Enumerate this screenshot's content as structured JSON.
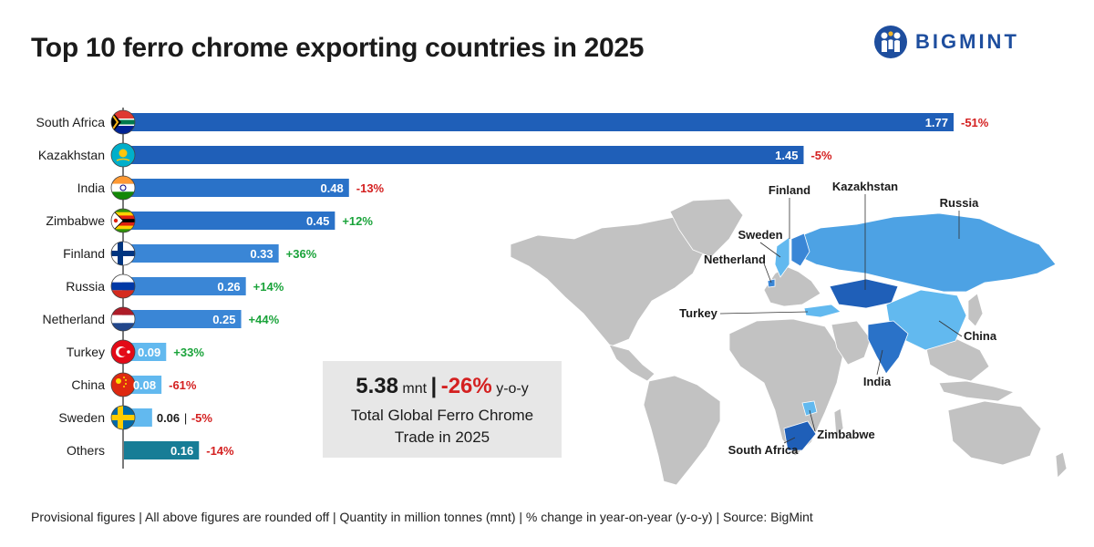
{
  "title": "Top 10 ferro chrome exporting countries in 2025",
  "brand": {
    "name": "BIGMINT"
  },
  "colors": {
    "dark_blue": "#1f5fb8",
    "mid_blue": "#3a86d6",
    "light_blue": "#62b9ef",
    "teal": "#177d96",
    "negative": "#d42020",
    "positive": "#1aa33a",
    "map_land": "#c2c2c2",
    "callout_bg": "#e7e7e7"
  },
  "chart_data": {
    "type": "bar",
    "orientation": "horizontal",
    "unit": "mnt",
    "categories": [
      "South Africa",
      "Kazakhstan",
      "India",
      "Zimbabwe",
      "Finland",
      "Russia",
      "Netherland",
      "Turkey",
      "China",
      "Sweden",
      "Others"
    ],
    "values": [
      1.77,
      1.45,
      0.48,
      0.45,
      0.33,
      0.26,
      0.25,
      0.09,
      0.08,
      0.06,
      0.16
    ],
    "value_labels": [
      "1.77",
      "1.45",
      "0.48",
      "0.45",
      "0.33",
      "0.26",
      "0.25",
      "0.09",
      "0.08",
      "0.06",
      "0.16"
    ],
    "changes": [
      "-51%",
      "-5%",
      "-13%",
      "+12%",
      "+36%",
      "+14%",
      "+44%",
      "+33%",
      "-61%",
      "-5%",
      "-14%"
    ],
    "flag_icons": [
      "south-africa-flag-icon",
      "kazakhstan-flag-icon",
      "india-flag-icon",
      "zimbabwe-flag-icon",
      "finland-flag-icon",
      "russia-flag-icon",
      "netherlands-flag-icon",
      "turkey-flag-icon",
      "china-flag-icon",
      "sweden-flag-icon",
      ""
    ],
    "bar_colors": [
      "#1f5fb8",
      "#1f5fb8",
      "#2a72c8",
      "#2a72c8",
      "#3a86d6",
      "#3a86d6",
      "#3a86d6",
      "#62b9ef",
      "#62b9ef",
      "#62b9ef",
      "#177d96"
    ],
    "xlim": [
      0,
      1.77
    ],
    "grid": false,
    "legend": "none"
  },
  "map": {
    "labels": [
      "Finland",
      "Kazakhstan",
      "Russia",
      "Sweden",
      "Netherland",
      "Turkey",
      "China",
      "India",
      "Zimbabwe",
      "South Africa"
    ]
  },
  "callout": {
    "total": "5.38",
    "unit": "mnt",
    "separator": "|",
    "change": "-26%",
    "change_unit": "y-o-y",
    "line1": "Total Global Ferro Chrome",
    "line2": "Trade in 2025"
  },
  "footer": "Provisional figures | All above figures are rounded off | Quantity in million tonnes (mnt) | % change in year-on-year (y-o-y) | Source: BigMint"
}
